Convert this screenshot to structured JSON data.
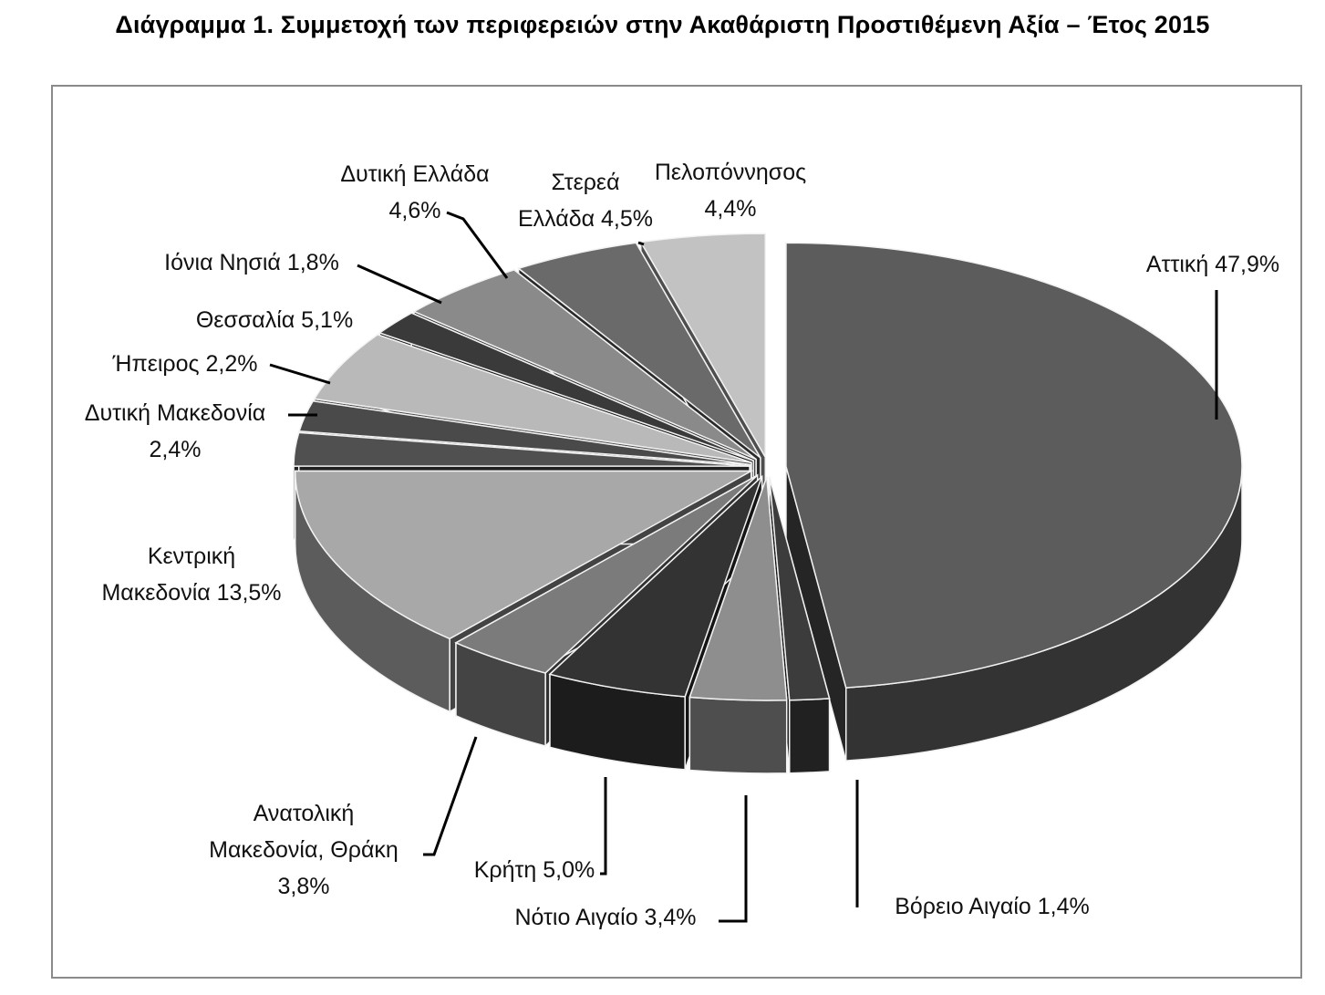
{
  "title": "Διάγραμμα 1. Συμμετοχή των περιφερειών στην Ακαθάριστη Προστιθέμενη Αξία – Έτος 2015",
  "chart_data": {
    "type": "pie",
    "title": "Διάγραμμα 1. Συμμετοχή των περιφερειών στην Ακαθάριστη Προστιθέμενη Αξία – Έτος 2015",
    "unit": "%",
    "categories": [
      "Αττική",
      "Βόρειο Αιγαίο",
      "Νότιο Αιγαίο",
      "Κρήτη",
      "Ανατολική Μακεδονία, Θράκη",
      "Κεντρική Μακεδονία",
      "Δυτική Μακεδονία",
      "Ήπειρος",
      "Θεσσαλία",
      "Ιόνια Νησιά",
      "Δυτική Ελλάδα",
      "Στερεά Ελλάδα",
      "Πελοπόννησος"
    ],
    "values": [
      47.9,
      1.4,
      3.4,
      5.0,
      3.8,
      13.5,
      2.4,
      2.2,
      5.1,
      1.8,
      4.6,
      4.5,
      4.4
    ],
    "labels": [
      [
        "Αττική 47,9%"
      ],
      [
        "Βόρειο Αιγαίο 1,4%"
      ],
      [
        "Νότιο Αιγαίο 3,4%"
      ],
      [
        "Κρήτη 5,0%"
      ],
      [
        "Ανατολική",
        "Μακεδονία, Θράκη",
        "3,8%"
      ],
      [
        "Κεντρική",
        "Μακεδονία 13,5%"
      ],
      [
        "Δυτική Μακεδονία",
        "2,4%"
      ],
      [
        "Ήπειρος 2,2%"
      ],
      [
        "Θεσσαλία 5,1%"
      ],
      [
        "Ιόνια Νησιά 1,8%"
      ],
      [
        "Δυτική Ελλάδα",
        "4,6%"
      ],
      [
        "Στερεά",
        "Ελλάδα 4,5%"
      ],
      [
        "Πελοπόννησος",
        "4,4%"
      ]
    ],
    "colors": [
      "#5c5c5c",
      "#3c3c3c",
      "#8e8e8e",
      "#333333",
      "#7b7b7b",
      "#a8a8a8",
      "#505050",
      "#4a4a4a",
      "#b9b9b9",
      "#3a3a3a",
      "#8a8a8a",
      "#6a6a6a",
      "#c2c2c2"
    ]
  }
}
